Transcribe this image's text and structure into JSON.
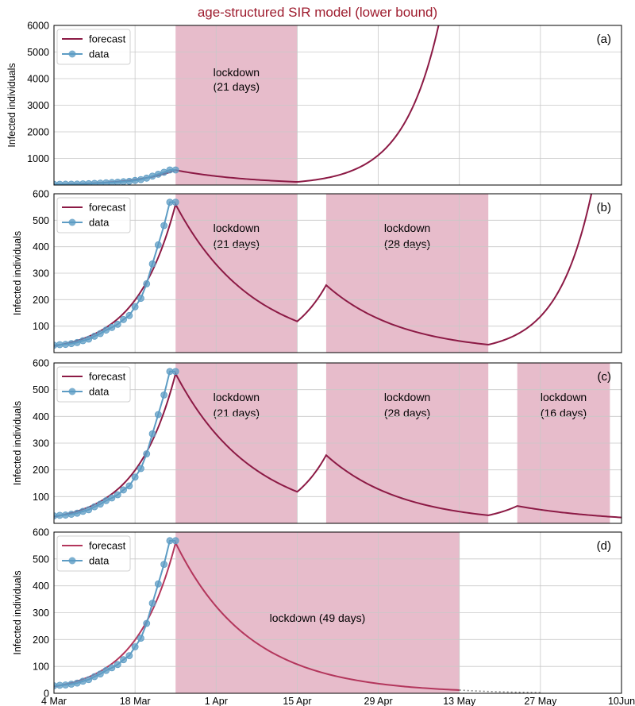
{
  "title": "age-structured SIR model (lower bound)",
  "colors": {
    "forecast": "#8c1a45",
    "forecast_d": "#b3365c",
    "data": "#5d9cc4",
    "lockdown": "#e7bccb",
    "title": "#9e1c2e",
    "grid": "#c8c8c8"
  },
  "x_axis": {
    "days_range": [
      0,
      98
    ],
    "tick_days": [
      0,
      14,
      28,
      42,
      56,
      70,
      84,
      98
    ],
    "tick_labels": [
      "4 Mar",
      "18 Mar",
      "1 Apr",
      "15 Apr",
      "29 Apr",
      "13 May",
      "27 May",
      "10Jun"
    ]
  },
  "data_series": {
    "name": "data",
    "day": [
      0,
      1,
      2,
      3,
      4,
      5,
      6,
      7,
      8,
      9,
      10,
      11,
      12,
      13,
      14,
      15,
      16,
      17,
      18,
      19,
      20,
      21
    ],
    "values": [
      28,
      30,
      31,
      34,
      38,
      45,
      51,
      62,
      72,
      85,
      95,
      107,
      125,
      140,
      173,
      205,
      260,
      335,
      407,
      480,
      568,
      568
    ]
  },
  "chart_data": [
    {
      "type": "line",
      "panel": "(a)",
      "ylabel": "Infected individuals",
      "ylim": [
        0,
        6000
      ],
      "yticks": [
        1000,
        2000,
        3000,
        4000,
        5000,
        6000
      ],
      "legend": [
        "forecast",
        "data"
      ],
      "lockdowns": [
        {
          "start": 21,
          "end": 42,
          "label": [
            "lockdown",
            "(21 days)"
          ]
        }
      ]
    },
    {
      "type": "line",
      "panel": "(b)",
      "ylabel": "Infected individuals",
      "ylim": [
        0,
        600
      ],
      "yticks": [
        100,
        200,
        300,
        400,
        500,
        600
      ],
      "legend": [
        "forecast",
        "data"
      ],
      "lockdowns": [
        {
          "start": 21,
          "end": 42,
          "label": [
            "lockdown",
            "(21 days)"
          ]
        },
        {
          "start": 47,
          "end": 75,
          "label": [
            "lockdown",
            "(28 days)"
          ]
        }
      ]
    },
    {
      "type": "line",
      "panel": "(c)",
      "ylabel": "Infected individuals",
      "ylim": [
        0,
        600
      ],
      "yticks": [
        100,
        200,
        300,
        400,
        500,
        600
      ],
      "legend": [
        "forecast",
        "data"
      ],
      "lockdowns": [
        {
          "start": 21,
          "end": 42,
          "label": [
            "lockdown",
            "(21 days)"
          ]
        },
        {
          "start": 47,
          "end": 75,
          "label": [
            "lockdown",
            "(28 days)"
          ]
        },
        {
          "start": 80,
          "end": 96,
          "label": [
            "lockdown",
            "(16 days)"
          ]
        }
      ]
    },
    {
      "type": "line",
      "panel": "(d)",
      "ylabel": "Infected individuals",
      "ylim": [
        0,
        600
      ],
      "yticks": [
        0,
        100,
        200,
        300,
        400,
        500,
        600
      ],
      "legend": [
        "forecast",
        "data"
      ],
      "lockdowns": [
        {
          "start": 21,
          "end": 70,
          "label": [
            "lockdown (49 days)"
          ]
        }
      ]
    }
  ]
}
